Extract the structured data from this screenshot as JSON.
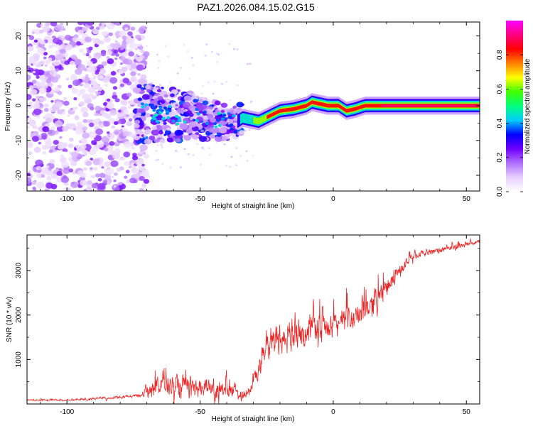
{
  "title": "PAZ1.2026.084.15.02.G15",
  "chart_data": [
    {
      "type": "heatmap",
      "xlabel": "Height of straight line (km)",
      "ylabel": "Frequency (Hz)",
      "xlim": [
        -115,
        55
      ],
      "ylim": [
        -24.5,
        24
      ],
      "xticks": [
        -100,
        -50,
        0,
        50
      ],
      "xtick_labels": [
        "-100",
        "-50",
        "0",
        "50"
      ],
      "yticks": [
        -20,
        -10,
        0,
        10,
        20
      ],
      "ytick_labels": [
        "-20",
        "-10",
        "0",
        "10",
        "20"
      ],
      "colorbar": {
        "label": "Normalized spectral amplitude",
        "range": [
          0,
          1
        ],
        "ticks": [
          0.0,
          0.2,
          0.4,
          0.6,
          0.8
        ],
        "tick_labels": [
          "0.0",
          "0.2",
          "0.4",
          "0.6",
          "0.8"
        ],
        "colors": [
          "#ffffff",
          "#e8d0ff",
          "#b070ff",
          "#7000ff",
          "#0000ff",
          "#00ccff",
          "#00ff80",
          "#40ff00",
          "#ffff00",
          "#ff8000",
          "#ff0000",
          "#ff0080",
          "#ff00ff"
        ]
      },
      "ridge_center": [
        [
          -73,
          -1.5
        ],
        [
          -65,
          -2.5
        ],
        [
          -55,
          -3
        ],
        [
          -45,
          -4
        ],
        [
          -38,
          -5.5
        ],
        [
          -34,
          -3.5
        ],
        [
          -28,
          -4.5
        ],
        [
          -24,
          -3
        ],
        [
          -20,
          -1.5
        ],
        [
          -15,
          -1
        ],
        [
          -10,
          0
        ],
        [
          -8,
          1
        ],
        [
          -5,
          0.5
        ],
        [
          -2,
          0
        ],
        [
          2,
          0
        ],
        [
          5,
          -1.5
        ],
        [
          8,
          -1
        ],
        [
          12,
          0
        ],
        [
          20,
          0
        ],
        [
          55,
          0
        ]
      ]
    },
    {
      "type": "line",
      "xlabel": "Height of straight line (km)",
      "ylabel": "SNR (10 * v/v)",
      "xlim": [
        -115,
        55
      ],
      "ylim": [
        0,
        3800
      ],
      "xticks": [
        -100,
        -50,
        0,
        50
      ],
      "xtick_labels": [
        "-100",
        "-50",
        "0",
        "50"
      ],
      "yticks": [
        1000,
        2000,
        3000
      ],
      "ytick_labels": [
        "1000",
        "2000",
        "3000"
      ],
      "line_color": "#ee2222",
      "series": [
        {
          "name": "SNR",
          "envelope_x": [
            -115,
            -100,
            -80,
            -72,
            -70,
            -65,
            -60,
            -55,
            -50,
            -45,
            -40,
            -35,
            -32,
            -28,
            -25,
            -22,
            -20,
            -15,
            -10,
            -5,
            0,
            5,
            10,
            15,
            20,
            25,
            30,
            40,
            50,
            55
          ],
          "envelope_base": [
            90,
            90,
            150,
            200,
            300,
            400,
            450,
            420,
            400,
            350,
            300,
            250,
            250,
            800,
            1300,
            1500,
            1400,
            1600,
            1700,
            1750,
            1800,
            1900,
            2000,
            2300,
            2600,
            3000,
            3350,
            3450,
            3600,
            3650
          ],
          "envelope_amp": [
            40,
            40,
            50,
            60,
            350,
            500,
            600,
            500,
            400,
            400,
            350,
            300,
            200,
            500,
            700,
            700,
            600,
            600,
            600,
            600,
            500,
            500,
            500,
            600,
            400,
            250,
            150,
            120,
            100,
            100
          ]
        }
      ]
    }
  ]
}
